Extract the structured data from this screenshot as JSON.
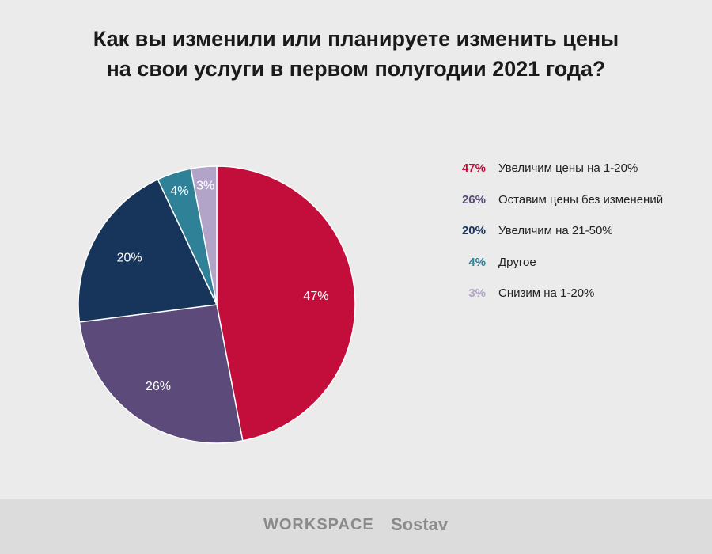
{
  "title_lines": [
    "Как вы изменили или планируете изменить цены",
    "на свои услуги в первом полугодии 2021 года?"
  ],
  "chart_data": {
    "type": "pie",
    "title": "Как вы изменили или планируете изменить цены на свои услуги в первом полугодии 2021 года?",
    "slices": [
      {
        "label": "Увеличим цены на 1-20%",
        "value": 47,
        "display": "47%",
        "color": "#c30e3c"
      },
      {
        "label": "Оставим цены без изменений",
        "value": 26,
        "display": "26%",
        "color": "#5c4a7a"
      },
      {
        "label": "Увеличим на 21-50%",
        "value": 20,
        "display": "20%",
        "color": "#17345a"
      },
      {
        "label": "Другое",
        "value": 4,
        "display": "4%",
        "color": "#2f8197"
      },
      {
        "label": "Снизим на 1-20%",
        "value": 3,
        "display": "3%",
        "color": "#b2a4c8"
      }
    ],
    "legend_position": "right"
  },
  "footer": {
    "logo_workspace": "WORKSPACE",
    "logo_sostav": "Sostav"
  }
}
